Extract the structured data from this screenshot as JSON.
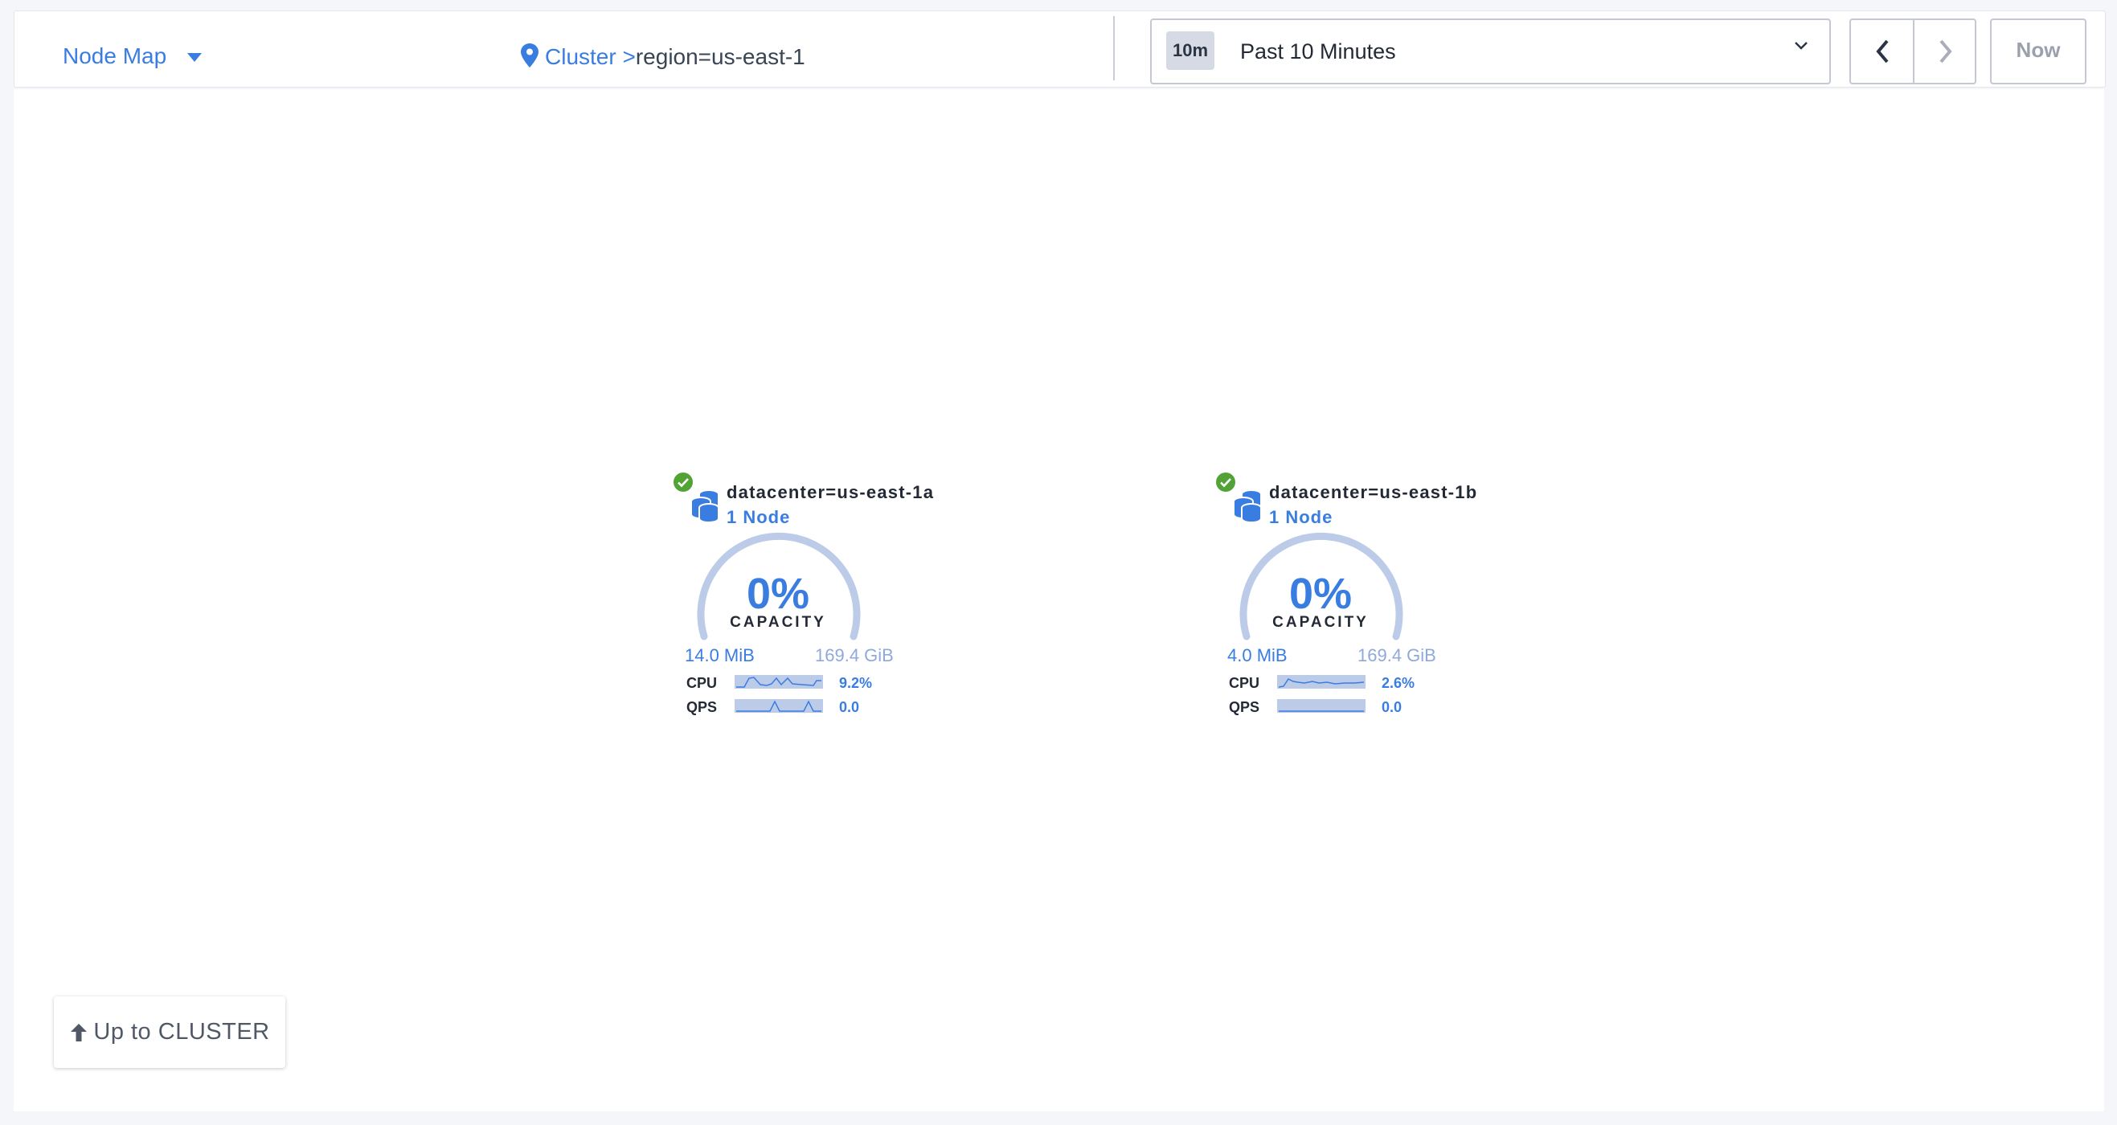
{
  "header": {
    "view_selector": "Node Map",
    "breadcrumb": {
      "root": "Cluster",
      "separator": ">",
      "current": "region=us-east-1"
    },
    "time_range": {
      "badge": "10m",
      "label": "Past 10 Minutes"
    },
    "now_label": "Now"
  },
  "localities": [
    {
      "title": "datacenter=us-east-1a",
      "nodes": "1 Node",
      "status": "healthy",
      "capacity_pct": "0%",
      "capacity_label": "CAPACITY",
      "used": "14.0 MiB",
      "total": "169.4 GiB",
      "cpu_label": "CPU",
      "cpu_value": "9.2%",
      "qps_label": "QPS",
      "qps_value": "0.0"
    },
    {
      "title": "datacenter=us-east-1b",
      "nodes": "1 Node",
      "status": "healthy",
      "capacity_pct": "0%",
      "capacity_label": "CAPACITY",
      "used": "4.0 MiB",
      "total": "169.4 GiB",
      "cpu_label": "CPU",
      "cpu_value": "2.6%",
      "qps_label": "QPS",
      "qps_value": "0.0"
    }
  ],
  "up_button": "Up to CLUSTER",
  "colors": {
    "accent": "#3a7de1",
    "healthy": "#52a336",
    "gauge_track": "#bccbe8",
    "background": "#f5f6fa"
  }
}
